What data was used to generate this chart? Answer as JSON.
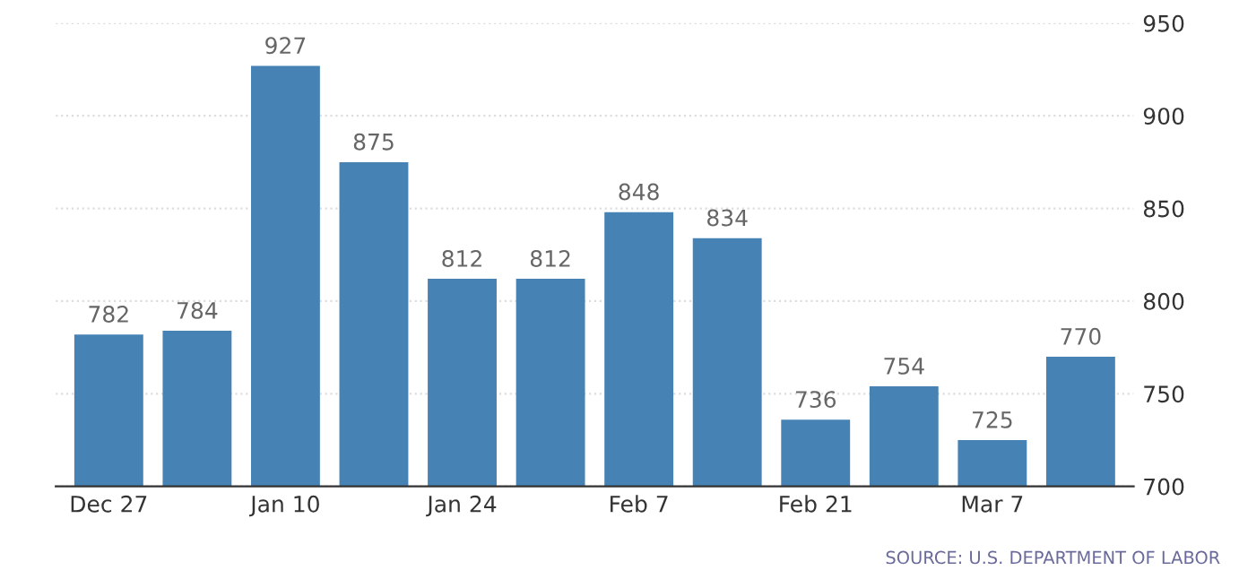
{
  "chart_data": {
    "type": "bar",
    "categories": [
      "Dec 27",
      null,
      "Jan 10",
      null,
      "Jan 24",
      null,
      "Feb 7",
      null,
      "Feb 21",
      null,
      "Mar 7",
      null
    ],
    "values": [
      782,
      784,
      927,
      875,
      812,
      812,
      848,
      834,
      736,
      754,
      725,
      770
    ],
    "color": "#4682b4",
    "ylim": [
      700,
      950
    ],
    "yticks": [
      700,
      750,
      800,
      850,
      900,
      950
    ],
    "grid": "y",
    "data_labels": true,
    "annotations": [
      "SOURCE: U.S. DEPARTMENT OF LABOR"
    ]
  }
}
